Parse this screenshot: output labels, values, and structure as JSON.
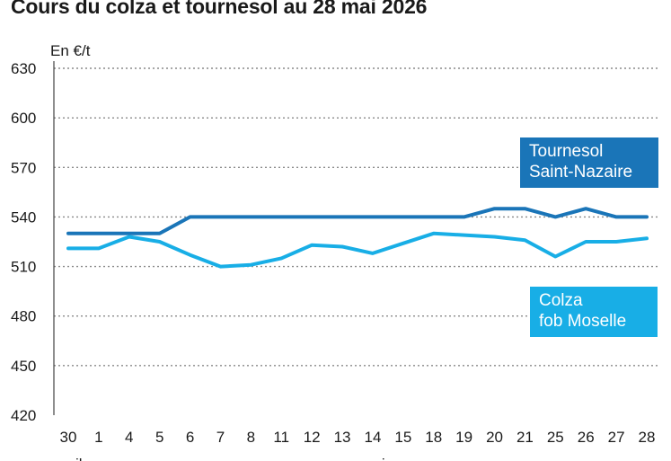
{
  "chart_data": {
    "type": "line",
    "title": "Cours du colza et tournesol au 28 mai 2026",
    "ylabel": "En €/t",
    "xlabel": "",
    "ylim": [
      420,
      630
    ],
    "yticks": [
      420,
      450,
      480,
      510,
      540,
      570,
      600,
      630
    ],
    "categories": [
      "30",
      "1",
      "4",
      "5",
      "6",
      "7",
      "8",
      "11",
      "12",
      "13",
      "14",
      "15",
      "18",
      "19",
      "20",
      "21",
      "25",
      "26",
      "27",
      "28"
    ],
    "month_labels": [
      {
        "label": "avril",
        "index": 0
      },
      {
        "label": "mai",
        "index": 10
      }
    ],
    "grid": "horizontal dotted",
    "series": [
      {
        "name_lines": [
          "Tournesol",
          "Saint-Nazaire"
        ],
        "color": "#1a75b8",
        "values": [
          530,
          530,
          530,
          530,
          540,
          540,
          540,
          540,
          540,
          540,
          540,
          540,
          540,
          540,
          545,
          545,
          540,
          545,
          540,
          540
        ]
      },
      {
        "name_lines": [
          "Colza",
          "fob Moselle"
        ],
        "color": "#18aee6",
        "values": [
          521,
          521,
          528,
          525,
          517,
          510,
          511,
          515,
          523,
          522,
          518,
          524,
          530,
          529,
          528,
          526,
          516,
          525,
          525,
          527
        ]
      }
    ]
  }
}
